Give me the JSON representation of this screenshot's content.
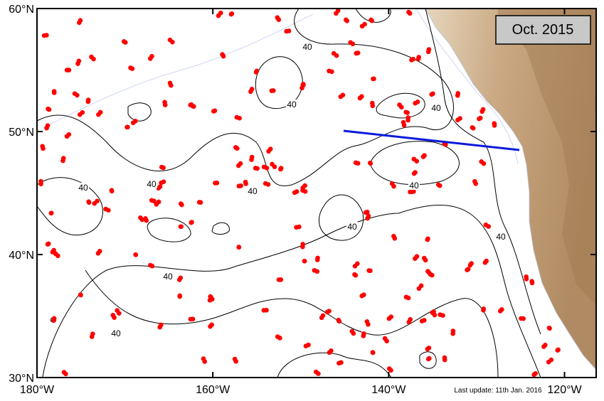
{
  "map": {
    "title_box": "Oct. 2015",
    "footnote": "Last update: 11th Jan. 2016",
    "xlim": [
      -180,
      -116.4
    ],
    "ylim": [
      30,
      60
    ],
    "xticks": [
      {
        "value": -180,
        "label": "180°W"
      },
      {
        "value": -160,
        "label": "160°W"
      },
      {
        "value": -140,
        "label": "140°W"
      },
      {
        "value": -120,
        "label": "120°W"
      }
    ],
    "yticks": [
      {
        "value": 30,
        "label": "30°N"
      },
      {
        "value": 40,
        "label": "40°N"
      },
      {
        "value": 50,
        "label": "50°N"
      },
      {
        "value": 60,
        "label": "60°N"
      }
    ],
    "contour_labels": [
      "40",
      "40",
      "40",
      "40",
      "40",
      "40",
      "40",
      "40",
      "40",
      "40",
      "40"
    ]
  }
}
